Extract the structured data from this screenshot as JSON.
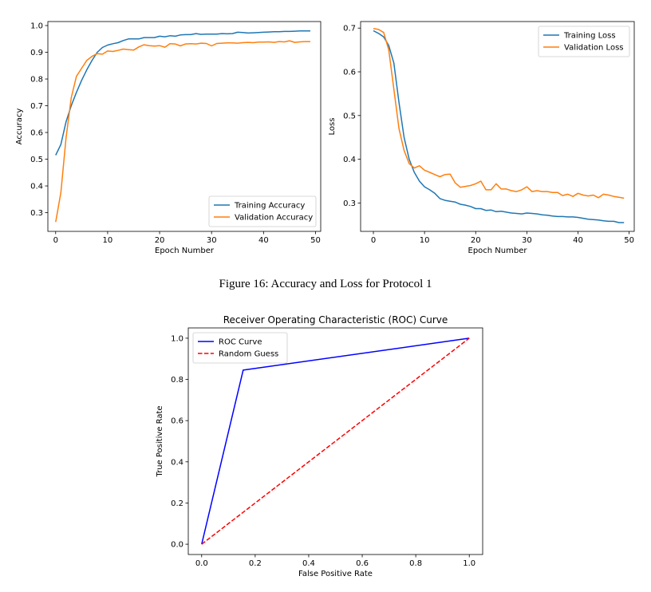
{
  "caption": "Figure 16: Accuracy and Loss for Protocol 1",
  "chart_data": [
    {
      "type": "line",
      "title": "",
      "xlabel": "Epoch Number",
      "ylabel": "Accuracy",
      "xlim": [
        -1.5,
        51
      ],
      "ylim": [
        0.23,
        1.015
      ],
      "xticks": [
        0,
        10,
        20,
        30,
        40,
        50
      ],
      "yticks": [
        0.3,
        0.4,
        0.5,
        0.6,
        0.7,
        0.8,
        0.9,
        1.0
      ],
      "ytick_labels": [
        "0.3",
        "0.4",
        "0.5",
        "0.6",
        "0.7",
        "0.8",
        "0.9",
        "1.0"
      ],
      "legend": "lower-right",
      "series": [
        {
          "name": "Training Accuracy",
          "color": "#1f77b4",
          "x": [
            0,
            1,
            2,
            3,
            4,
            5,
            6,
            7,
            8,
            9,
            10,
            11,
            12,
            13,
            14,
            15,
            16,
            17,
            18,
            19,
            20,
            21,
            22,
            23,
            24,
            25,
            26,
            27,
            28,
            29,
            30,
            31,
            32,
            33,
            34,
            35,
            36,
            37,
            38,
            39,
            40,
            41,
            42,
            43,
            44,
            45,
            46,
            47,
            48,
            49
          ],
          "y": [
            0.515,
            0.555,
            0.64,
            0.7,
            0.75,
            0.795,
            0.835,
            0.87,
            0.9,
            0.918,
            0.927,
            0.932,
            0.936,
            0.944,
            0.95,
            0.95,
            0.95,
            0.955,
            0.955,
            0.955,
            0.96,
            0.958,
            0.962,
            0.96,
            0.965,
            0.966,
            0.966,
            0.97,
            0.967,
            0.968,
            0.968,
            0.968,
            0.97,
            0.969,
            0.97,
            0.975,
            0.974,
            0.972,
            0.973,
            0.974,
            0.975,
            0.976,
            0.977,
            0.977,
            0.978,
            0.978,
            0.979,
            0.98,
            0.98,
            0.98
          ]
        },
        {
          "name": "Validation Accuracy",
          "color": "#ff7f0e",
          "x": [
            0,
            1,
            2,
            3,
            4,
            5,
            6,
            7,
            8,
            9,
            10,
            11,
            12,
            13,
            14,
            15,
            16,
            17,
            18,
            19,
            20,
            21,
            22,
            23,
            24,
            25,
            26,
            27,
            28,
            29,
            30,
            31,
            32,
            33,
            34,
            35,
            36,
            37,
            38,
            39,
            40,
            41,
            42,
            43,
            44,
            45,
            46,
            47,
            48,
            49
          ],
          "y": [
            0.265,
            0.375,
            0.58,
            0.73,
            0.81,
            0.84,
            0.87,
            0.885,
            0.895,
            0.893,
            0.905,
            0.903,
            0.907,
            0.912,
            0.91,
            0.908,
            0.92,
            0.928,
            0.925,
            0.923,
            0.925,
            0.919,
            0.932,
            0.931,
            0.924,
            0.931,
            0.932,
            0.931,
            0.934,
            0.933,
            0.924,
            0.933,
            0.934,
            0.935,
            0.935,
            0.934,
            0.936,
            0.937,
            0.936,
            0.938,
            0.938,
            0.939,
            0.937,
            0.94,
            0.939,
            0.943,
            0.937,
            0.939,
            0.94,
            0.94
          ]
        }
      ]
    },
    {
      "type": "line",
      "title": "",
      "xlabel": "Epoch Number",
      "ylabel": "Loss",
      "xlim": [
        -2.5,
        51
      ],
      "ylim": [
        0.235,
        0.715
      ],
      "xticks": [
        0,
        10,
        20,
        30,
        40,
        50
      ],
      "yticks": [
        0.3,
        0.4,
        0.5,
        0.6,
        0.7
      ],
      "ytick_labels": [
        "0.3",
        "0.4",
        "0.5",
        "0.6",
        "0.7"
      ],
      "legend": "top-right",
      "series": [
        {
          "name": "Training Loss",
          "color": "#1f77b4",
          "x": [
            0,
            1,
            2,
            3,
            4,
            5,
            6,
            7,
            8,
            9,
            10,
            11,
            12,
            13,
            14,
            15,
            16,
            17,
            18,
            19,
            20,
            21,
            22,
            23,
            24,
            25,
            26,
            27,
            28,
            29,
            30,
            31,
            32,
            33,
            34,
            35,
            36,
            37,
            38,
            39,
            40,
            41,
            42,
            43,
            44,
            45,
            46,
            47,
            48,
            49
          ],
          "y": [
            0.694,
            0.688,
            0.68,
            0.66,
            0.62,
            0.53,
            0.45,
            0.4,
            0.37,
            0.35,
            0.337,
            0.33,
            0.322,
            0.31,
            0.306,
            0.304,
            0.302,
            0.297,
            0.295,
            0.292,
            0.287,
            0.287,
            0.283,
            0.284,
            0.28,
            0.281,
            0.279,
            0.277,
            0.276,
            0.275,
            0.277,
            0.276,
            0.275,
            0.273,
            0.272,
            0.27,
            0.269,
            0.269,
            0.268,
            0.268,
            0.267,
            0.265,
            0.263,
            0.262,
            0.261,
            0.259,
            0.258,
            0.258,
            0.255,
            0.255
          ]
        },
        {
          "name": "Validation Loss",
          "color": "#ff7f0e",
          "x": [
            0,
            1,
            2,
            3,
            4,
            5,
            6,
            7,
            8,
            9,
            10,
            11,
            12,
            13,
            14,
            15,
            16,
            17,
            18,
            19,
            20,
            21,
            22,
            23,
            24,
            25,
            26,
            27,
            28,
            29,
            30,
            31,
            32,
            33,
            34,
            35,
            36,
            37,
            38,
            39,
            40,
            41,
            42,
            43,
            44,
            45,
            46,
            47,
            48,
            49
          ],
          "y": [
            0.699,
            0.697,
            0.69,
            0.65,
            0.56,
            0.47,
            0.42,
            0.39,
            0.38,
            0.385,
            0.375,
            0.37,
            0.365,
            0.36,
            0.365,
            0.366,
            0.346,
            0.336,
            0.338,
            0.34,
            0.344,
            0.35,
            0.33,
            0.33,
            0.344,
            0.332,
            0.332,
            0.328,
            0.326,
            0.33,
            0.337,
            0.326,
            0.328,
            0.326,
            0.326,
            0.324,
            0.324,
            0.317,
            0.32,
            0.315,
            0.322,
            0.318,
            0.316,
            0.318,
            0.312,
            0.32,
            0.318,
            0.315,
            0.313,
            0.311
          ]
        }
      ]
    },
    {
      "type": "line",
      "title": "Receiver Operating Characteristic (ROC) Curve",
      "xlabel": "False Positive Rate",
      "ylabel": "True Positive Rate",
      "xlim": [
        -0.05,
        1.05
      ],
      "ylim": [
        -0.05,
        1.05
      ],
      "xticks": [
        0.0,
        0.2,
        0.4,
        0.6,
        0.8,
        1.0
      ],
      "xtick_labels": [
        "0.0",
        "0.2",
        "0.4",
        "0.6",
        "0.8",
        "1.0"
      ],
      "yticks": [
        0.0,
        0.2,
        0.4,
        0.6,
        0.8,
        1.0
      ],
      "ytick_labels": [
        "0.0",
        "0.2",
        "0.4",
        "0.6",
        "0.8",
        "1.0"
      ],
      "legend": "top-left",
      "series": [
        {
          "name": "ROC Curve",
          "color": "#0000ff",
          "dash": "solid",
          "x": [
            0.0,
            0.155,
            1.0
          ],
          "y": [
            0.0,
            0.845,
            1.0
          ]
        },
        {
          "name": "Random Guess",
          "color": "#ff0000",
          "dash": "dashed",
          "x": [
            0.0,
            1.0
          ],
          "y": [
            0.0,
            1.0
          ]
        }
      ]
    }
  ]
}
